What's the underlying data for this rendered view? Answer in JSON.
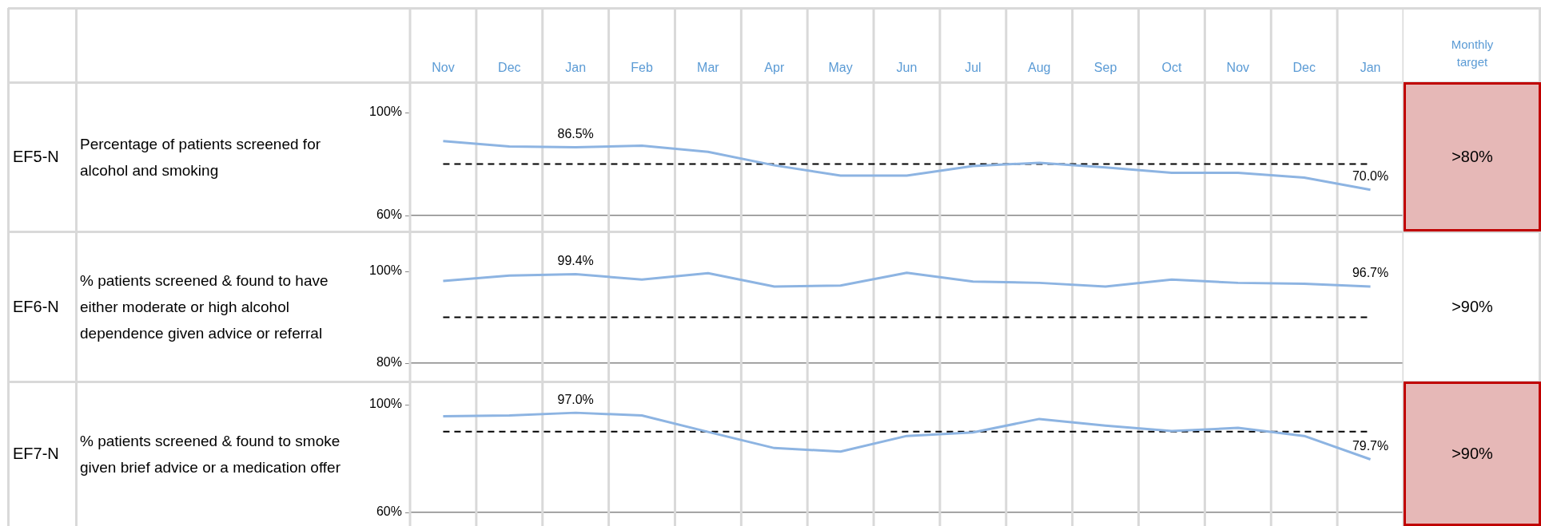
{
  "chart_data": [
    {
      "type": "line",
      "categories": [
        "Nov",
        "Dec",
        "Jan",
        "Feb",
        "Mar",
        "Apr",
        "May",
        "Jun",
        "Jul",
        "Aug",
        "Sep",
        "Oct",
        "Nov",
        "Dec",
        "Jan"
      ],
      "series": [
        {
          "color": "#8db4e2",
          "values": [
            88.9,
            86.8,
            86.5,
            87.1,
            84.7,
            79.5,
            75.5,
            75.5,
            79.2,
            80.5,
            78.7,
            76.6,
            76.6,
            74.7,
            70.0
          ],
          "value_labels": [
            null,
            null,
            "86.5%",
            null,
            null,
            null,
            null,
            null,
            null,
            null,
            null,
            null,
            null,
            null,
            "70.0%"
          ]
        }
      ],
      "ylim": [
        60,
        100
      ],
      "yticks": [
        {
          "value": 60,
          "label": "60%"
        },
        {
          "value": 100,
          "label": "100%"
        }
      ],
      "grid": "x",
      "marker": "none",
      "ref_lines": [
        {
          "axis": "y",
          "value": 80,
          "color": "#000000",
          "line_style": "dashed"
        }
      ],
      "annotations": [
        "EF5-N",
        "Percentage of patients screened for alcohol and smoking",
        ">80%",
        "Monthly target"
      ]
    },
    {
      "type": "line",
      "categories": [
        null,
        null,
        null,
        null,
        null,
        null,
        null,
        null,
        null,
        null,
        null,
        null,
        null,
        null,
        null
      ],
      "series": [
        {
          "color": "#8db4e2",
          "values": [
            97.9,
            99.1,
            99.4,
            98.2,
            99.6,
            96.7,
            96.9,
            99.7,
            97.8,
            97.5,
            96.7,
            98.2,
            97.5,
            97.3,
            96.7
          ],
          "value_labels": [
            null,
            null,
            "99.4%",
            null,
            null,
            null,
            null,
            null,
            null,
            null,
            null,
            null,
            null,
            null,
            "96.7%"
          ]
        }
      ],
      "ylim": [
        80,
        100
      ],
      "yticks": [
        {
          "value": 80,
          "label": "80%"
        },
        {
          "value": 100,
          "label": "100%"
        }
      ],
      "grid": "x",
      "marker": "none",
      "tick_labels": "y",
      "ref_lines": [
        {
          "axis": "y",
          "value": 90,
          "color": "#000000",
          "line_style": "dashed"
        }
      ],
      "annotations": [
        "EF6-N",
        "% patients screened & found to have either moderate or high alcohol dependence given advice or referral",
        ">90%"
      ]
    },
    {
      "type": "line",
      "categories": [
        null,
        null,
        null,
        null,
        null,
        null,
        null,
        null,
        null,
        null,
        null,
        null,
        null,
        null,
        null
      ],
      "series": [
        {
          "color": "#8db4e2",
          "values": [
            95.7,
            96.0,
            97.0,
            96.0,
            89.9,
            83.9,
            82.6,
            88.4,
            89.7,
            94.7,
            92.2,
            90.2,
            91.4,
            88.4,
            79.7
          ],
          "value_labels": [
            null,
            null,
            "97.0%",
            null,
            null,
            null,
            null,
            null,
            null,
            null,
            null,
            null,
            null,
            null,
            "79.7%"
          ]
        }
      ],
      "ylim": [
        60,
        100
      ],
      "yticks": [
        {
          "value": 60,
          "label": "60%"
        },
        {
          "value": 100,
          "label": "100%"
        }
      ],
      "grid": "x",
      "marker": "none",
      "tick_labels": "y",
      "ref_lines": [
        {
          "axis": "y",
          "value": 90,
          "color": "#000000",
          "line_style": "dashed"
        }
      ],
      "annotations": [
        "EF7-N",
        "% patients screened & found to smoke given brief advice or a medication offer",
        ">90%"
      ]
    }
  ]
}
